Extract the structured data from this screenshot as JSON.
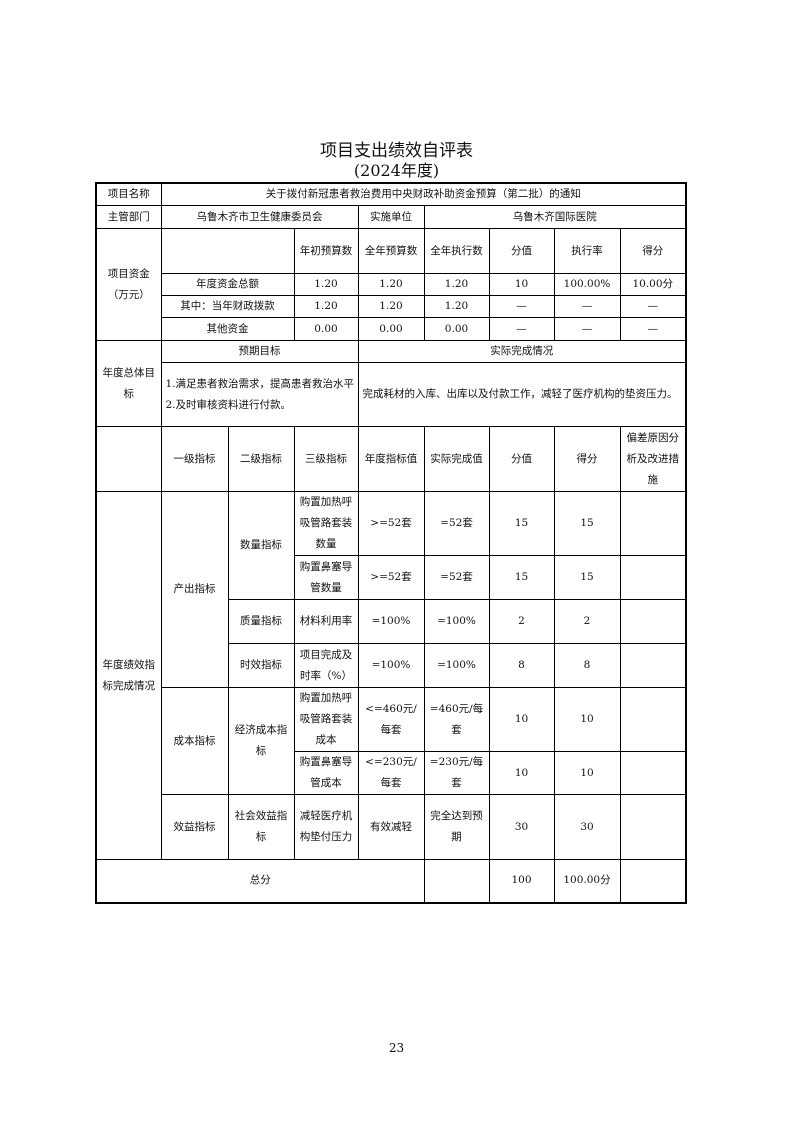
{
  "title": "项目支出绩效自评表",
  "subtitle": "(2024年度)",
  "project": {
    "name_label": "项目名称",
    "name": "关于拨付新冠患者救治费用中央财政补助资金预算（第二批）的通知",
    "dept_label": "主管部门",
    "dept": "乌鲁木齐市卫生健康委员会",
    "unit_label": "实施单位",
    "unit": "乌鲁木齐国际医院"
  },
  "funds": {
    "label": "项目资金（万元）",
    "headers": [
      "年初预算数",
      "全年预算数",
      "全年执行数",
      "分值",
      "执行率",
      "得分"
    ],
    "rows": [
      {
        "label": "年度资金总额",
        "cells": [
          "1.20",
          "1.20",
          "1.20",
          "10",
          "100.00%",
          "10.00分"
        ]
      },
      {
        "label": "其中：当年财政拨款",
        "cells": [
          "1.20",
          "1.20",
          "1.20",
          "—",
          "—",
          "—"
        ]
      },
      {
        "label": "其他资金",
        "cells": [
          "0.00",
          "0.00",
          "0.00",
          "—",
          "—",
          "—"
        ]
      }
    ]
  },
  "goals": {
    "label": "年度总体目标",
    "expected_label": "预期目标",
    "actual_label": "实际完成情况",
    "expected_1": "1.满足患者救治需求，提高患者救治水平",
    "expected_2": "2.及时审核资料进行付款。",
    "actual": "完成耗材的入库、出库以及付款工作，减轻了医疗机构的垫资压力。"
  },
  "indicators": {
    "section_label": "年度绩效指标完成情况",
    "headers": [
      "一级指标",
      "二级指标",
      "三级指标",
      "年度指标值",
      "实际完成值",
      "分值",
      "得分",
      "偏差原因分析及改进措施"
    ],
    "level1": [
      "产出指标",
      "成本指标",
      "效益指标"
    ],
    "level2": [
      "数量指标",
      "质量指标",
      "时效指标",
      "经济成本指标",
      "社会效益指标"
    ],
    "rows": [
      {
        "level3": "购置加热呼吸管路套装数量",
        "target": ">=52套",
        "actual": "=52套",
        "score_value": "15",
        "score": "15",
        "note": ""
      },
      {
        "level3": "购置鼻塞导管数量",
        "target": ">=52套",
        "actual": "=52套",
        "score_value": "15",
        "score": "15",
        "note": ""
      },
      {
        "level3": "材料利用率",
        "target": "=100%",
        "actual": "=100%",
        "score_value": "2",
        "score": "2",
        "note": ""
      },
      {
        "level3": "项目完成及时率（%）",
        "target": "=100%",
        "actual": "=100%",
        "score_value": "8",
        "score": "8",
        "note": ""
      },
      {
        "level3": "购置加热呼吸管路套装成本",
        "target": "<=460元/每套",
        "actual": "=460元/每套",
        "score_value": "10",
        "score": "10",
        "note": ""
      },
      {
        "level3": "购置鼻塞导管成本",
        "target": "<=230元/每套",
        "actual": "=230元/每套",
        "score_value": "10",
        "score": "10",
        "note": ""
      },
      {
        "level3": "减轻医疗机构垫付压力",
        "target": "有效减轻",
        "actual": "完全达到预期",
        "score_value": "30",
        "score": "30",
        "note": ""
      }
    ]
  },
  "total": {
    "label": "总分",
    "score_value": "100",
    "score": "100.00分"
  },
  "page_number": "23"
}
